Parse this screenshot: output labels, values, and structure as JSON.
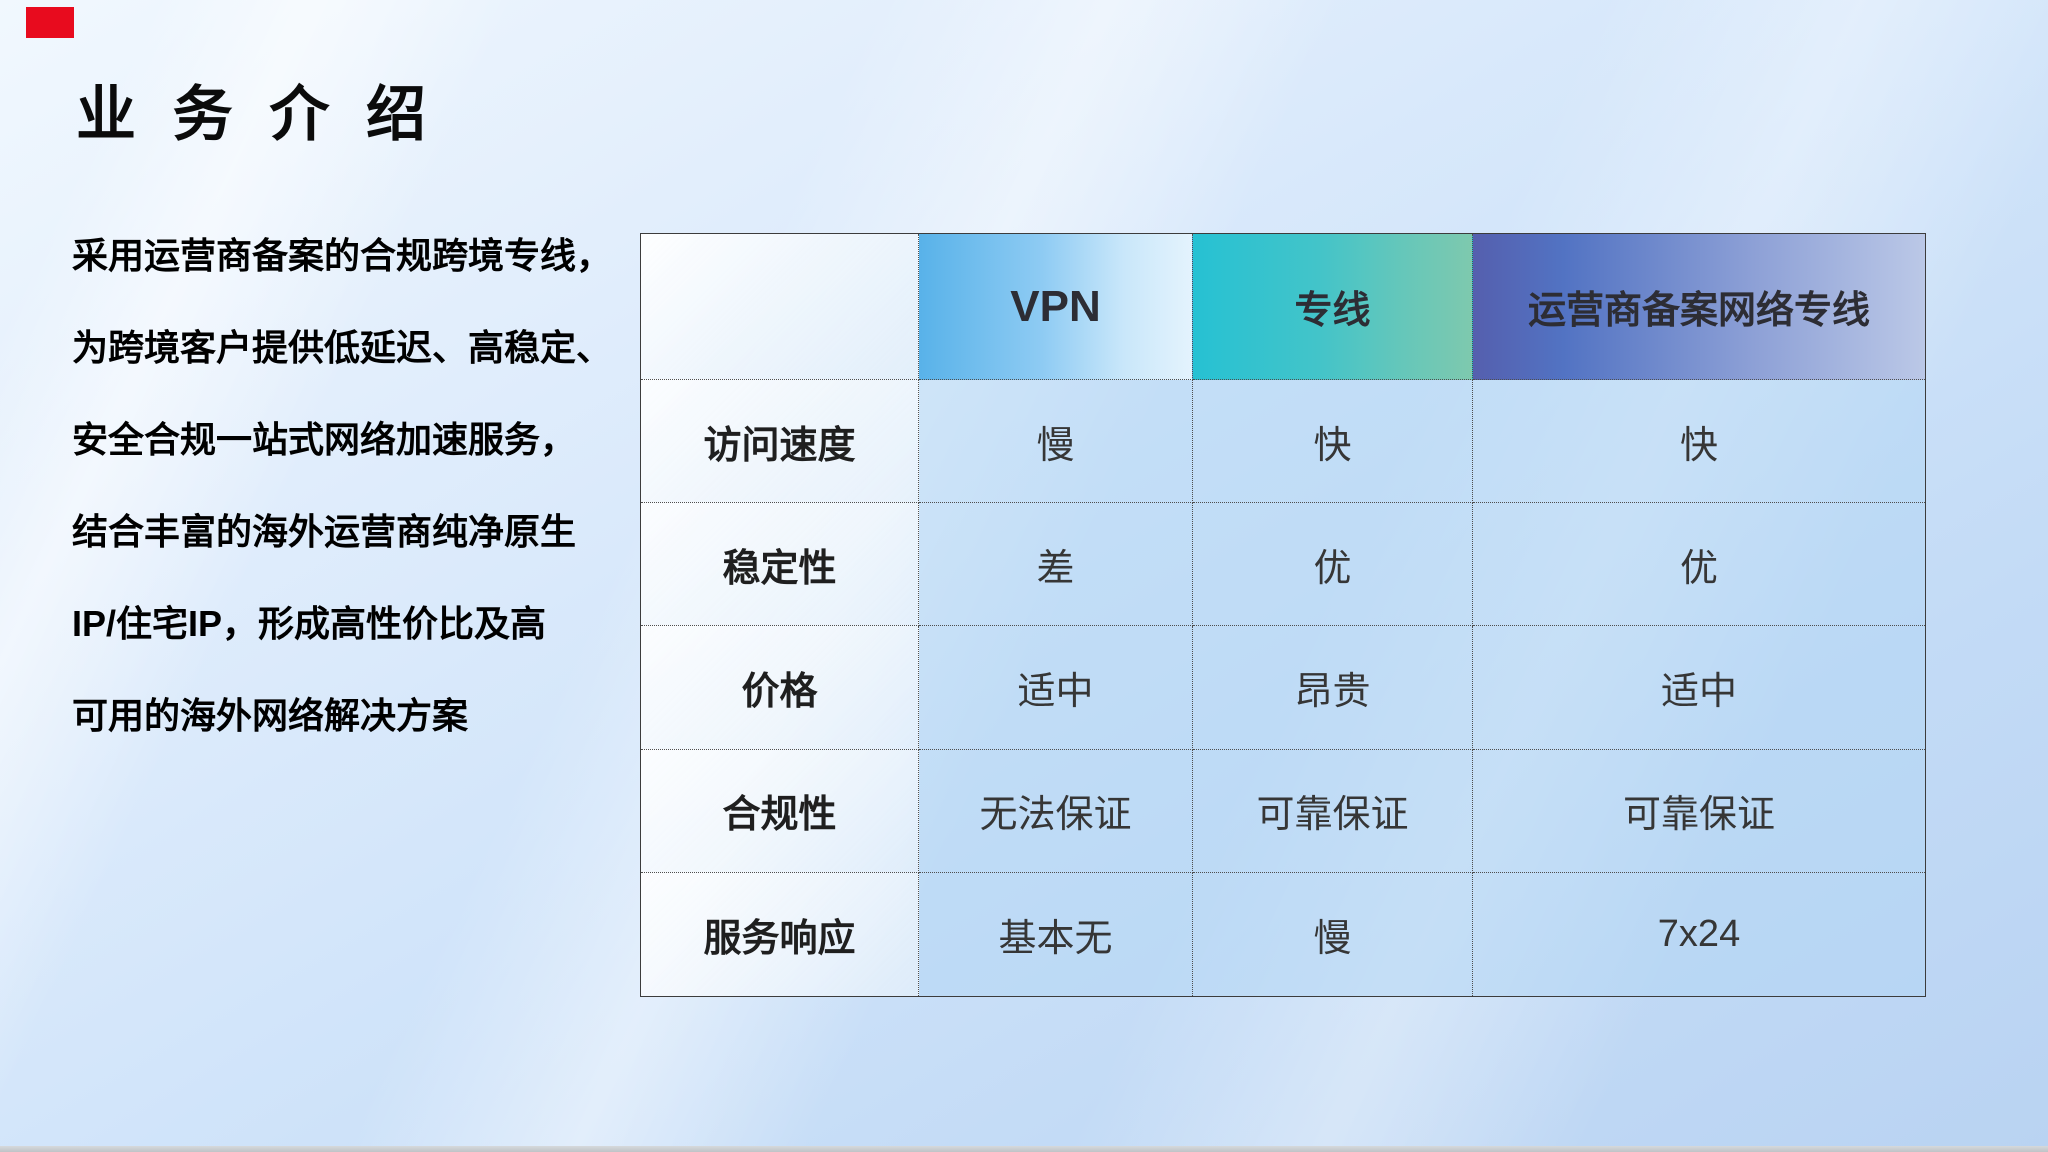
{
  "title": "业 务 介 绍",
  "intro": {
    "lines": [
      "采用运营商备案的合规跨境专线，",
      "为跨境客户提供低延迟、高稳定、",
      "安全合规一站式网络加速服务，",
      "结合丰富的海外运营商纯净原生",
      "IP/住宅IP，形成高性价比及高",
      "可用的海外网络解决方案"
    ]
  },
  "table": {
    "header": [
      {
        "label": ""
      },
      {
        "label": "VPN"
      },
      {
        "label": "专线"
      },
      {
        "label": "运营商备案网络专线"
      }
    ],
    "rows": [
      {
        "label": "访问速度",
        "values": [
          "慢",
          "快",
          "快"
        ]
      },
      {
        "label": "稳定性",
        "values": [
          "差",
          "优",
          "优"
        ]
      },
      {
        "label": "价格",
        "values": [
          "适中",
          "昂贵",
          "适中"
        ]
      },
      {
        "label": "合规性",
        "values": [
          "无法保证",
          "可靠保证",
          "可靠保证"
        ]
      },
      {
        "label": "服务响应",
        "values": [
          "基本无",
          "慢",
          "7x24"
        ]
      }
    ]
  },
  "colors": {
    "vpn_header_start": "#58b2e9",
    "vpn_header_end": "#e4f3fd",
    "line_header_start": "#26c1d3",
    "line_header_end": "#7ec9ae",
    "carrier_header_start": "#555fae",
    "carrier_header_end": "#bbc8e7",
    "red_marker": "#e80b1e",
    "background_top": "#f1f8fe",
    "background_bottom": "#b9d3f2"
  }
}
